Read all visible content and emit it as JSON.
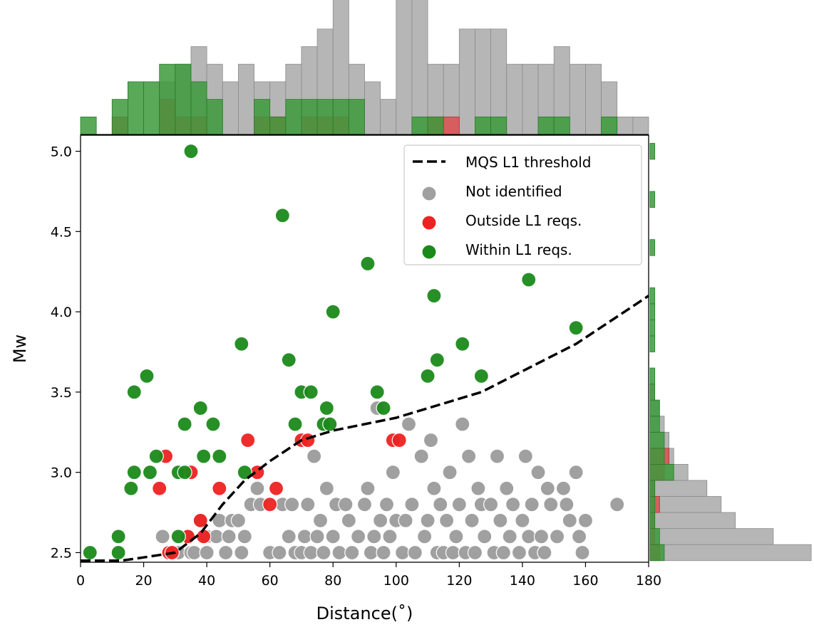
{
  "chart_data": {
    "type": "scatter",
    "xlabel": "Distance(˚)",
    "ylabel": "Mw",
    "xlim": [
      0,
      180
    ],
    "ylim": [
      2.44,
      5.1
    ],
    "xticks": [
      "0",
      "20",
      "40",
      "60",
      "80",
      "100",
      "120",
      "140",
      "160",
      "180"
    ],
    "yticks": [
      "2.5",
      "3.0",
      "3.5",
      "4.0",
      "4.5",
      "5.0"
    ],
    "grid": false,
    "legend_position": "top-right",
    "colors": {
      "threshold": "#000000",
      "not_identified": "#a0a0a0",
      "outside": "#ee2222",
      "within": "#1a8a1a",
      "hist_grey": "#a9a9a9",
      "hist_red": "#dc4f4f",
      "hist_green": "#3c9a3c"
    },
    "legend": [
      {
        "label": "MQS L1 threshold",
        "kind": "dashed-line",
        "color": "#000000"
      },
      {
        "label": "Not identified",
        "kind": "dot",
        "color": "#a0a0a0"
      },
      {
        "label": "Outside L1 reqs.",
        "kind": "dot",
        "color": "#ee2222"
      },
      {
        "label": "Within L1 reqs.",
        "kind": "dot",
        "color": "#1a8a1a"
      }
    ],
    "threshold_line": {
      "name": "MQS L1 threshold",
      "x": [
        0,
        13,
        20,
        30,
        38,
        45,
        52,
        60,
        70,
        80,
        100,
        127,
        157,
        180
      ],
      "y": [
        2.45,
        2.45,
        2.47,
        2.5,
        2.62,
        2.8,
        2.95,
        3.07,
        3.2,
        3.26,
        3.34,
        3.5,
        3.8,
        4.1
      ]
    },
    "series": [
      {
        "name": "Not identified",
        "points": [
          [
            26,
            2.6
          ],
          [
            29,
            2.5
          ],
          [
            31,
            2.5
          ],
          [
            34,
            2.6
          ],
          [
            35,
            2.5
          ],
          [
            36,
            2.5
          ],
          [
            38,
            2.7
          ],
          [
            40,
            2.5
          ],
          [
            40,
            2.6
          ],
          [
            43,
            2.6
          ],
          [
            44,
            2.7
          ],
          [
            46,
            2.5
          ],
          [
            47,
            2.6
          ],
          [
            48,
            2.7
          ],
          [
            50,
            2.7
          ],
          [
            51,
            2.5
          ],
          [
            52,
            2.6
          ],
          [
            54,
            2.8
          ],
          [
            56,
            2.9
          ],
          [
            57,
            2.8
          ],
          [
            60,
            2.5
          ],
          [
            63,
            2.5
          ],
          [
            64,
            2.8
          ],
          [
            66,
            2.6
          ],
          [
            67,
            2.8
          ],
          [
            68,
            2.5
          ],
          [
            70,
            2.5
          ],
          [
            71,
            2.6
          ],
          [
            72,
            2.8
          ],
          [
            73,
            2.5
          ],
          [
            74,
            3.1
          ],
          [
            75,
            2.6
          ],
          [
            76,
            2.7
          ],
          [
            77,
            2.5
          ],
          [
            78,
            2.9
          ],
          [
            80,
            2.6
          ],
          [
            81,
            2.8
          ],
          [
            82,
            2.5
          ],
          [
            84,
            2.8
          ],
          [
            85,
            2.7
          ],
          [
            86,
            2.5
          ],
          [
            88,
            2.6
          ],
          [
            90,
            2.8
          ],
          [
            91,
            2.9
          ],
          [
            92,
            2.5
          ],
          [
            93,
            2.6
          ],
          [
            94,
            3.4
          ],
          [
            95,
            2.7
          ],
          [
            96,
            2.5
          ],
          [
            97,
            2.8
          ],
          [
            98,
            2.6
          ],
          [
            99,
            3.0
          ],
          [
            100,
            2.7
          ],
          [
            102,
            2.5
          ],
          [
            103,
            2.7
          ],
          [
            104,
            3.3
          ],
          [
            105,
            2.8
          ],
          [
            106,
            2.5
          ],
          [
            108,
            3.1
          ],
          [
            109,
            2.6
          ],
          [
            110,
            2.7
          ],
          [
            111,
            3.2
          ],
          [
            112,
            2.9
          ],
          [
            113,
            2.5
          ],
          [
            114,
            2.8
          ],
          [
            115,
            2.5
          ],
          [
            116,
            2.7
          ],
          [
            117,
            3.0
          ],
          [
            118,
            2.5
          ],
          [
            119,
            2.6
          ],
          [
            120,
            2.8
          ],
          [
            121,
            3.3
          ],
          [
            122,
            2.5
          ],
          [
            123,
            3.1
          ],
          [
            124,
            2.7
          ],
          [
            125,
            2.5
          ],
          [
            126,
            2.9
          ],
          [
            127,
            2.8
          ],
          [
            128,
            2.6
          ],
          [
            130,
            2.8
          ],
          [
            131,
            2.5
          ],
          [
            132,
            3.1
          ],
          [
            133,
            2.7
          ],
          [
            134,
            2.5
          ],
          [
            135,
            2.9
          ],
          [
            136,
            2.6
          ],
          [
            137,
            2.8
          ],
          [
            139,
            2.5
          ],
          [
            140,
            2.7
          ],
          [
            141,
            3.1
          ],
          [
            142,
            2.6
          ],
          [
            143,
            2.8
          ],
          [
            144,
            2.5
          ],
          [
            145,
            3.0
          ],
          [
            146,
            2.6
          ],
          [
            147,
            2.5
          ],
          [
            148,
            2.9
          ],
          [
            149,
            2.8
          ],
          [
            151,
            2.6
          ],
          [
            153,
            2.9
          ],
          [
            154,
            2.8
          ],
          [
            155,
            2.7
          ],
          [
            157,
            3.0
          ],
          [
            158,
            2.6
          ],
          [
            159,
            2.5
          ],
          [
            160,
            2.7
          ],
          [
            170,
            2.8
          ]
        ]
      },
      {
        "name": "Outside L1 reqs.",
        "points": [
          [
            25,
            2.9
          ],
          [
            27,
            3.1
          ],
          [
            28,
            2.5
          ],
          [
            29,
            2.5
          ],
          [
            34,
            2.6
          ],
          [
            35,
            3.0
          ],
          [
            38,
            2.7
          ],
          [
            39,
            2.6
          ],
          [
            44,
            2.9
          ],
          [
            53,
            3.2
          ],
          [
            56,
            3.0
          ],
          [
            60,
            2.8
          ],
          [
            62,
            2.9
          ],
          [
            70,
            3.2
          ],
          [
            72,
            3.2
          ],
          [
            99,
            3.2
          ],
          [
            101,
            3.2
          ]
        ]
      },
      {
        "name": "Within L1 reqs.",
        "points": [
          [
            3,
            2.5
          ],
          [
            12,
            2.6
          ],
          [
            12,
            2.5
          ],
          [
            16,
            2.9
          ],
          [
            17,
            3.5
          ],
          [
            17,
            3.0
          ],
          [
            21,
            3.6
          ],
          [
            22,
            3.0
          ],
          [
            24,
            3.1
          ],
          [
            31,
            3.0
          ],
          [
            31,
            2.6
          ],
          [
            33,
            3.3
          ],
          [
            33,
            3.0
          ],
          [
            35,
            5.0
          ],
          [
            38,
            3.4
          ],
          [
            39,
            3.1
          ],
          [
            42,
            3.3
          ],
          [
            44,
            3.1
          ],
          [
            51,
            3.8
          ],
          [
            52,
            3.0
          ],
          [
            64,
            4.6
          ],
          [
            66,
            3.7
          ],
          [
            68,
            3.3
          ],
          [
            70,
            3.5
          ],
          [
            73,
            3.5
          ],
          [
            77,
            3.3
          ],
          [
            78,
            3.4
          ],
          [
            79,
            3.3
          ],
          [
            80,
            4.0
          ],
          [
            91,
            4.3
          ],
          [
            94,
            3.5
          ],
          [
            96,
            3.4
          ],
          [
            110,
            3.6
          ],
          [
            112,
            4.1
          ],
          [
            113,
            3.7
          ],
          [
            121,
            3.8
          ],
          [
            127,
            3.6
          ],
          [
            142,
            4.2
          ],
          [
            157,
            3.9
          ]
        ]
      }
    ],
    "x_histogram": {
      "bin_start": 0,
      "bin_width": 5,
      "not_identified": [
        0,
        0,
        0,
        0,
        0,
        3,
        4,
        5,
        4,
        3,
        4,
        3,
        3,
        4,
        5,
        6,
        8,
        4,
        3,
        2,
        8,
        8,
        4,
        4,
        6,
        6,
        6,
        4,
        4,
        4,
        5,
        4,
        4,
        3,
        1,
        1
      ],
      "outside": [
        0,
        0,
        1,
        0,
        0,
        2,
        1,
        1,
        0,
        0,
        0,
        1,
        1,
        0,
        1,
        1,
        1,
        0,
        0,
        0,
        0,
        0,
        1,
        1,
        0,
        0,
        0,
        0,
        0,
        0,
        0,
        0,
        0,
        0,
        0,
        0
      ],
      "within": [
        1,
        0,
        2,
        3,
        3,
        4,
        4,
        3,
        2,
        0,
        0,
        2,
        1,
        2,
        2,
        2,
        2,
        2,
        0,
        0,
        0,
        1,
        1,
        0,
        0,
        1,
        1,
        0,
        0,
        1,
        1,
        0,
        0,
        1,
        0,
        0
      ]
    },
    "y_histogram": {
      "bin_start": 2.45,
      "bin_width": 0.1,
      "not_identified": [
        34,
        26,
        18,
        15,
        12,
        8,
        5,
        4,
        3,
        2,
        1,
        0,
        0,
        0,
        0,
        0,
        0,
        0,
        0,
        0,
        0,
        0,
        0,
        0,
        0,
        0
      ],
      "outside": [
        2,
        1,
        1,
        2,
        1,
        3,
        4,
        0,
        0,
        0,
        0,
        0,
        0,
        0,
        0,
        0,
        0,
        0,
        0,
        0,
        0,
        0,
        0,
        0,
        0,
        0
      ],
      "within": [
        3,
        2,
        1,
        1,
        1,
        5,
        3,
        3,
        2,
        2,
        1,
        1,
        0,
        1,
        1,
        1,
        1,
        0,
        0,
        1,
        0,
        0,
        1,
        0,
        0,
        1
      ]
    }
  }
}
